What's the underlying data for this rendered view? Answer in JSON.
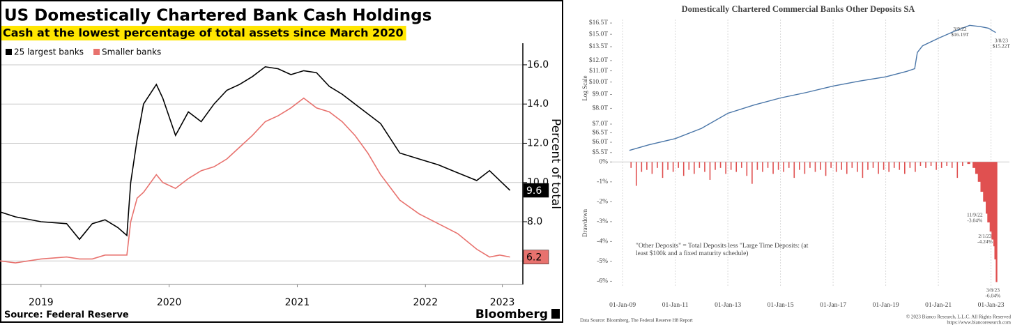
{
  "chart_data": [
    {
      "type": "line",
      "title": "US Domestically Chartered Bank Cash Holdings",
      "subtitle": "Cash at the lowest percentage of total assets since March 2020",
      "ylabel": "Percent of total",
      "y_axis_position": "right",
      "source": "Source: Federal Reserve",
      "brand": "Bloomberg",
      "grid": true,
      "legend": "top-left",
      "x": [
        2019.18,
        2019.3,
        2019.5,
        2019.7,
        2019.8,
        2019.9,
        2020.0,
        2020.1,
        2020.17,
        2020.2,
        2020.25,
        2020.3,
        2020.4,
        2020.45,
        2020.55,
        2020.65,
        2020.75,
        2020.85,
        2020.95,
        2021.05,
        2021.15,
        2021.25,
        2021.35,
        2021.45,
        2021.55,
        2021.65,
        2021.75,
        2021.85,
        2021.95,
        2022.05,
        2022.15,
        2022.3,
        2022.45,
        2022.6,
        2022.75,
        2022.9,
        2023.0,
        2023.08,
        2023.16
      ],
      "series": [
        {
          "name": "25 largest banks",
          "color": "#000000",
          "label_text_color": "#ffffff",
          "values": [
            8.5,
            8.25,
            8.0,
            7.9,
            7.1,
            7.9,
            8.1,
            7.7,
            7.3,
            10.0,
            12.2,
            14.0,
            15.0,
            14.3,
            12.4,
            13.6,
            13.1,
            14.0,
            14.7,
            15.0,
            15.4,
            15.9,
            15.8,
            15.5,
            15.7,
            15.6,
            14.9,
            14.5,
            14.0,
            13.5,
            13.0,
            11.5,
            11.2,
            10.9,
            10.5,
            10.1,
            10.6,
            10.1,
            9.6
          ]
        },
        {
          "name": "Smaller banks",
          "color": "#e8726e",
          "label_text_color": "#000000",
          "values": [
            6.0,
            5.9,
            6.1,
            6.2,
            6.1,
            6.1,
            6.3,
            6.3,
            6.3,
            8.0,
            9.2,
            9.5,
            10.4,
            10.0,
            9.7,
            10.2,
            10.6,
            10.8,
            11.2,
            11.8,
            12.4,
            13.1,
            13.4,
            13.8,
            14.3,
            13.8,
            13.6,
            13.1,
            12.4,
            11.5,
            10.4,
            9.1,
            8.4,
            7.9,
            7.4,
            6.6,
            6.2,
            6.3,
            6.2
          ]
        }
      ],
      "xlim": [
        2019.18,
        2023.26
      ],
      "xticks": [
        {
          "value": 2019.5,
          "label": "2019"
        },
        {
          "value": 2020.5,
          "label": "2020"
        },
        {
          "value": 2021.5,
          "label": "2021"
        },
        {
          "value": 2022.5,
          "label": "2022"
        },
        {
          "value": 2023.1,
          "label": "2023"
        }
      ],
      "ylim": [
        4.8,
        17.1
      ],
      "yticks": [
        {
          "value": 6,
          "label": "6.0"
        },
        {
          "value": 8,
          "label": "8.0"
        },
        {
          "value": 10,
          "label": "10.0"
        },
        {
          "value": 12,
          "label": "12.0"
        },
        {
          "value": 14,
          "label": "14.0"
        },
        {
          "value": 16,
          "label": "16.0"
        }
      ]
    },
    {
      "type": "line",
      "title": "Domestically Chartered Commercial Banks Other Deposits SA",
      "ylabel": "Log Scale",
      "log_scale": true,
      "x": [
        2009.26,
        2010,
        2011,
        2012,
        2013,
        2014,
        2015,
        2016,
        2017,
        2018,
        2019,
        2019.8,
        2020.1,
        2020.2,
        2020.4,
        2021,
        2021.6,
        2022.19,
        2022.6,
        2022.9,
        2023.18
      ],
      "series": [
        {
          "name": "Other Deposits",
          "color": "#4a76a8",
          "values": [
            5.6,
            5.87,
            6.19,
            6.75,
            7.67,
            8.23,
            8.74,
            9.16,
            9.67,
            10.08,
            10.45,
            10.95,
            11.2,
            12.85,
            13.6,
            14.5,
            15.37,
            16.19,
            16.0,
            15.8,
            15.22
          ]
        }
      ],
      "xlim": [
        2008.6,
        2023.7
      ],
      "ylim": [
        5.3,
        17.0
      ],
      "yticks": [
        {
          "value": 5.5,
          "label": "$5.5T"
        },
        {
          "value": 6.0,
          "label": "$6.0T"
        },
        {
          "value": 6.5,
          "label": "$6.5T"
        },
        {
          "value": 7.0,
          "label": "$7.0T"
        },
        {
          "value": 8.0,
          "label": "$8.0T"
        },
        {
          "value": 9.0,
          "label": "$9.0T"
        },
        {
          "value": 10.0,
          "label": "$10.0T"
        },
        {
          "value": 11.0,
          "label": "$11.0T"
        },
        {
          "value": 12.0,
          "label": "$12.0T"
        },
        {
          "value": 13.5,
          "label": "$13.5T"
        },
        {
          "value": 15.0,
          "label": "$15.0T"
        },
        {
          "value": 16.5,
          "label": "$16.5T"
        }
      ],
      "annotations": [
        {
          "x": 2022.19,
          "y": 16.19,
          "label": [
            "3/9/22",
            "$16.19T"
          ]
        },
        {
          "x": 2023.18,
          "y": 15.22,
          "label": [
            "3/8/23",
            "$15.22T"
          ]
        }
      ]
    },
    {
      "type": "bar",
      "ylabel": "Drawdown",
      "color": "#e05050",
      "x": [
        2009.3,
        2009.5,
        2009.7,
        2009.9,
        2010.1,
        2010.3,
        2010.5,
        2010.7,
        2010.9,
        2011.1,
        2011.3,
        2011.5,
        2011.7,
        2011.9,
        2012.1,
        2012.3,
        2012.5,
        2012.7,
        2012.9,
        2013.1,
        2013.3,
        2013.5,
        2013.7,
        2013.9,
        2014.1,
        2014.3,
        2014.5,
        2014.7,
        2014.9,
        2015.1,
        2015.3,
        2015.5,
        2015.7,
        2015.9,
        2016.1,
        2016.3,
        2016.5,
        2016.7,
        2016.9,
        2017.1,
        2017.3,
        2017.5,
        2017.7,
        2017.9,
        2018.1,
        2018.3,
        2018.5,
        2018.7,
        2018.9,
        2019.1,
        2019.3,
        2019.5,
        2019.7,
        2019.9,
        2020.1,
        2020.3,
        2020.5,
        2020.7,
        2020.9,
        2021.1,
        2021.3,
        2021.5,
        2021.7,
        2021.9,
        2022.1,
        2022.2,
        2022.3,
        2022.4,
        2022.5,
        2022.6,
        2022.7,
        2022.8,
        2022.86,
        2022.95,
        2023.02,
        2023.09,
        2023.13,
        2023.18
      ],
      "values": [
        -0.3,
        -1.2,
        -0.5,
        -0.4,
        -0.6,
        -0.3,
        -0.8,
        -0.4,
        -0.5,
        -0.3,
        -0.7,
        -0.4,
        -0.6,
        -0.3,
        -0.5,
        -0.9,
        -0.4,
        -0.3,
        -0.6,
        -0.4,
        -0.5,
        -0.3,
        -0.7,
        -1.1,
        -0.4,
        -0.5,
        -0.3,
        -0.6,
        -0.4,
        -0.5,
        -0.3,
        -0.8,
        -0.4,
        -0.6,
        -0.3,
        -0.5,
        -0.4,
        -0.7,
        -0.3,
        -0.5,
        -0.4,
        -0.6,
        -0.3,
        -0.5,
        -0.8,
        -0.4,
        -0.3,
        -0.6,
        -0.4,
        -0.5,
        -0.3,
        -0.4,
        -0.6,
        -0.3,
        -0.5,
        -0.2,
        -0.3,
        -0.2,
        -0.4,
        -0.3,
        -0.2,
        -0.3,
        -0.8,
        -0.2,
        -0.1,
        0,
        -0.3,
        -0.6,
        -1.0,
        -1.5,
        -2.0,
        -2.6,
        -3.04,
        -3.5,
        -3.9,
        -4.24,
        -4.9,
        -6.04
      ],
      "xlim": [
        2008.6,
        2023.7
      ],
      "xticks": [
        {
          "value": 2009,
          "label": "01-Jan-09"
        },
        {
          "value": 2011,
          "label": "01-Jan-11"
        },
        {
          "value": 2013,
          "label": "01-Jan-13"
        },
        {
          "value": 2015,
          "label": "01-Jan-15"
        },
        {
          "value": 2017,
          "label": "01-Jan-17"
        },
        {
          "value": 2019,
          "label": "01-Jan-19"
        },
        {
          "value": 2021,
          "label": "01-Jan-21"
        },
        {
          "value": 2023,
          "label": "01-Jan-23"
        }
      ],
      "ylim": [
        -6.3,
        0.15
      ],
      "yticks": [
        {
          "value": 0,
          "label": "0%"
        },
        {
          "value": -1,
          "label": "-1%"
        },
        {
          "value": -2,
          "label": "-2%"
        },
        {
          "value": -3,
          "label": "-3%"
        },
        {
          "value": -4,
          "label": "-4%"
        },
        {
          "value": -5,
          "label": "-5%"
        },
        {
          "value": -6,
          "label": "-6%"
        }
      ],
      "annotations": [
        {
          "x": 2022.86,
          "y": -3.04,
          "label": [
            "11/9/22",
            "-3.04%"
          ]
        },
        {
          "x": 2023.09,
          "y": -4.24,
          "label": [
            "2/1/23",
            "-4.24%"
          ]
        },
        {
          "x": 2023.18,
          "y": -6.04,
          "label": [
            "3/8/23",
            "-6.04%"
          ]
        }
      ],
      "note": [
        "\"Other Deposits\" = Total Deposits less \"Large Time Deposits: (at",
        "least $100k and a fixed maturity schedule)"
      ],
      "source": "Data Source: Bloomberg, The Federal Reserve H8 Report",
      "copyright": "© 2023 Bianco Research, L.L.C. All Rights Reserved",
      "url": "https://www.biancoresearch.com"
    }
  ]
}
